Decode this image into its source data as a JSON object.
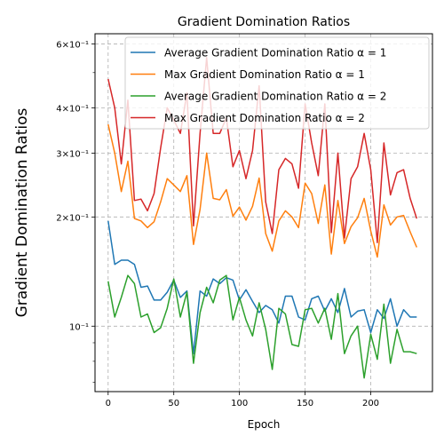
{
  "chart_data": {
    "type": "line",
    "title": "Gradient Domination Ratios",
    "xlabel": "Epoch",
    "ylabel": "Gradient Domination Ratios",
    "yscale": "log",
    "xlim": [
      -10,
      247
    ],
    "ylim": [
      0.066,
      0.64
    ],
    "grid": true,
    "legend_position": "top-right",
    "x_ticks": [
      0,
      50,
      100,
      150,
      200
    ],
    "x_tick_labels": [
      "0",
      "50",
      "100",
      "150",
      "200"
    ],
    "y_ticks": [
      0.1,
      0.2,
      0.3,
      0.4,
      0.6
    ],
    "y_tick_labels": [
      "10⁻¹",
      "2×10⁻¹",
      "3×10⁻¹",
      "4×10⁻¹",
      "6×10⁻¹"
    ],
    "y_minor_ticks": [
      0.07,
      0.08,
      0.09,
      0.5
    ],
    "x": [
      0,
      5,
      10,
      15,
      20,
      25,
      30,
      35,
      40,
      45,
      50,
      55,
      60,
      65,
      70,
      75,
      80,
      85,
      90,
      95,
      100,
      105,
      110,
      115,
      120,
      125,
      130,
      135,
      140,
      145,
      150,
      155,
      160,
      165,
      170,
      175,
      180,
      185,
      190,
      195,
      200,
      205,
      210,
      215,
      220,
      225,
      230,
      235
    ],
    "series": [
      {
        "name": "Average Gradient Domination Ratio α = 1",
        "color": "#1f77b4",
        "values": [
          0.195,
          0.148,
          0.152,
          0.152,
          0.148,
          0.128,
          0.129,
          0.118,
          0.118,
          0.124,
          0.134,
          0.12,
          0.125,
          0.084,
          0.125,
          0.121,
          0.135,
          0.131,
          0.136,
          0.134,
          0.118,
          0.126,
          0.117,
          0.109,
          0.114,
          0.111,
          0.102,
          0.121,
          0.121,
          0.106,
          0.104,
          0.119,
          0.121,
          0.11,
          0.119,
          0.109,
          0.127,
          0.106,
          0.11,
          0.111,
          0.096,
          0.111,
          0.105,
          0.119,
          0.1,
          0.111,
          0.106,
          0.106
        ]
      },
      {
        "name": "Max Gradient Domination Ratio α = 1",
        "color": "#ff7f0e",
        "values": [
          0.36,
          0.3,
          0.235,
          0.285,
          0.198,
          0.195,
          0.187,
          0.194,
          0.22,
          0.255,
          0.245,
          0.235,
          0.26,
          0.168,
          0.21,
          0.3,
          0.225,
          0.223,
          0.238,
          0.201,
          0.213,
          0.196,
          0.214,
          0.256,
          0.18,
          0.161,
          0.195,
          0.208,
          0.2,
          0.187,
          0.248,
          0.232,
          0.192,
          0.245,
          0.158,
          0.222,
          0.169,
          0.188,
          0.199,
          0.225,
          0.183,
          0.155,
          0.216,
          0.19,
          0.2,
          0.202,
          0.182,
          0.165
        ]
      },
      {
        "name": "Average Gradient Domination Ratio α = 2",
        "color": "#2ca02c",
        "values": [
          0.133,
          0.106,
          0.12,
          0.138,
          0.131,
          0.106,
          0.108,
          0.096,
          0.099,
          0.112,
          0.135,
          0.106,
          0.124,
          0.079,
          0.109,
          0.128,
          0.116,
          0.134,
          0.138,
          0.104,
          0.12,
          0.104,
          0.094,
          0.116,
          0.098,
          0.076,
          0.112,
          0.108,
          0.089,
          0.088,
          0.111,
          0.112,
          0.102,
          0.112,
          0.092,
          0.123,
          0.084,
          0.094,
          0.1,
          0.072,
          0.095,
          0.081,
          0.115,
          0.079,
          0.098,
          0.085,
          0.085,
          0.084
        ]
      },
      {
        "name": "Max Gradient Domination Ratio α = 2",
        "color": "#d62728",
        "values": [
          0.48,
          0.4,
          0.28,
          0.42,
          0.222,
          0.224,
          0.208,
          0.232,
          0.31,
          0.4,
          0.37,
          0.34,
          0.44,
          0.189,
          0.34,
          0.55,
          0.34,
          0.34,
          0.375,
          0.275,
          0.305,
          0.255,
          0.305,
          0.46,
          0.22,
          0.18,
          0.27,
          0.29,
          0.28,
          0.24,
          0.41,
          0.32,
          0.26,
          0.41,
          0.181,
          0.3,
          0.175,
          0.255,
          0.275,
          0.34,
          0.27,
          0.17,
          0.32,
          0.23,
          0.265,
          0.27,
          0.225,
          0.198
        ]
      }
    ]
  }
}
